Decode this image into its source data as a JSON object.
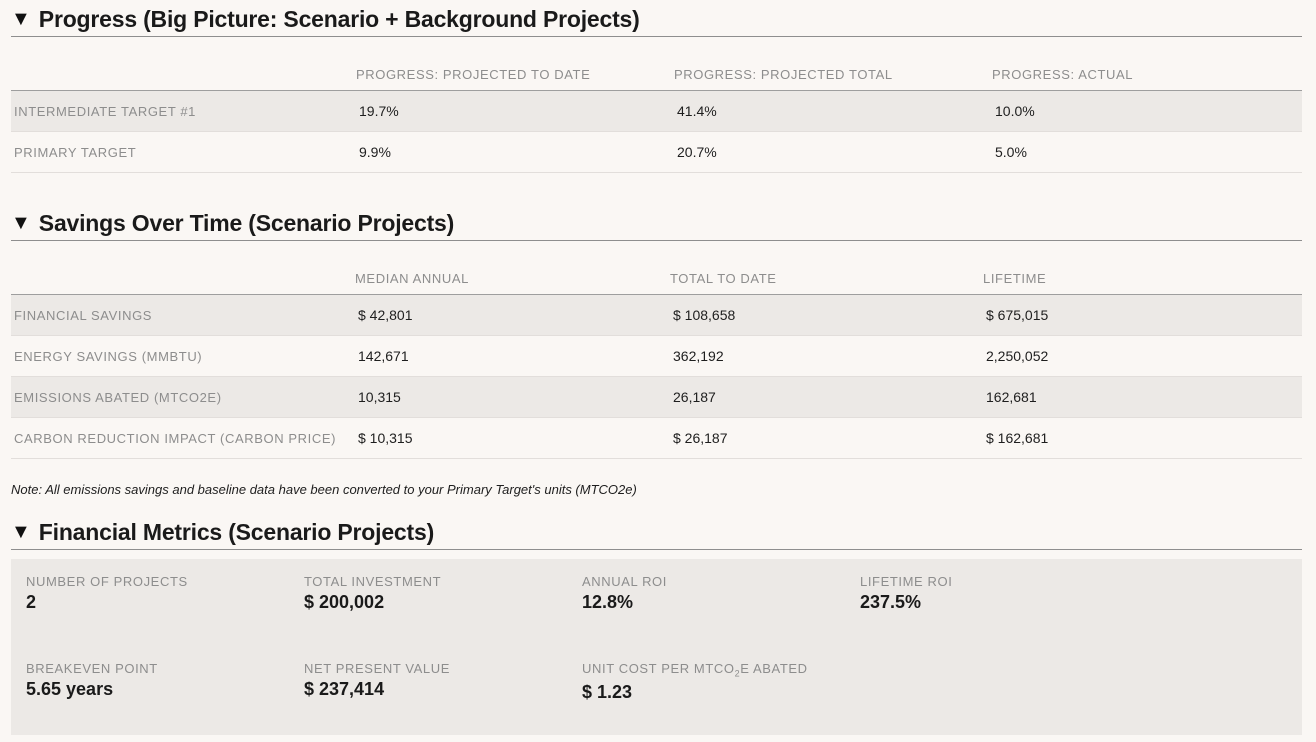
{
  "progress": {
    "title": "Progress (Big Picture: Scenario + Background Projects)",
    "columns": [
      "PROGRESS: PROJECTED TO DATE",
      "PROGRESS: PROJECTED TOTAL",
      "PROGRESS: ACTUAL"
    ],
    "rows": [
      {
        "label": "INTERMEDIATE TARGET #1",
        "values": [
          "19.7%",
          "41.4%",
          "10.0%"
        ]
      },
      {
        "label": "PRIMARY TARGET",
        "values": [
          "9.9%",
          "20.7%",
          "5.0%"
        ]
      }
    ]
  },
  "savings": {
    "title": "Savings Over Time (Scenario Projects)",
    "columns": [
      "MEDIAN ANNUAL",
      "TOTAL TO DATE",
      "LIFETIME"
    ],
    "rows": [
      {
        "label": "FINANCIAL SAVINGS",
        "values": [
          "$ 42,801",
          "$ 108,658",
          "$ 675,015"
        ]
      },
      {
        "label": "ENERGY SAVINGS (MMBTU)",
        "values": [
          "142,671",
          "362,192",
          "2,250,052"
        ]
      },
      {
        "label": "EMISSIONS ABATED (MTCO2E)",
        "values": [
          "10,315",
          "26,187",
          "162,681"
        ]
      },
      {
        "label": "CARBON REDUCTION IMPACT (CARBON PRICE)",
        "values": [
          "$ 10,315",
          "$ 26,187",
          "$ 162,681"
        ]
      }
    ],
    "note": "Note: All emissions savings and baseline data have been converted to your Primary Target's units (MTCO2e)"
  },
  "financial": {
    "title": "Financial Metrics (Scenario Projects)",
    "num_projects_label": "NUMBER OF PROJECTS",
    "num_projects_value": "2",
    "total_investment_label": "TOTAL INVESTMENT",
    "total_investment_value": "$ 200,002",
    "annual_roi_label": "ANNUAL ROI",
    "annual_roi_value": "12.8%",
    "lifetime_roi_label": "LIFETIME ROI",
    "lifetime_roi_value": "237.5%",
    "breakeven_label": "BREAKEVEN POINT",
    "breakeven_value": "5.65 years",
    "npv_label": "NET PRESENT VALUE",
    "npv_value": "$ 237,414",
    "unit_cost_label_pre": "UNIT COST PER MTCO",
    "unit_cost_label_sub": "2",
    "unit_cost_label_post": "E ABATED",
    "unit_cost_value": "$ 1.23"
  },
  "icons": {
    "collapse": "triangle-down-icon"
  },
  "colors": {
    "background": "#faf7f4",
    "row_alt": "#ece9e6",
    "label": "#8d8d8d"
  }
}
